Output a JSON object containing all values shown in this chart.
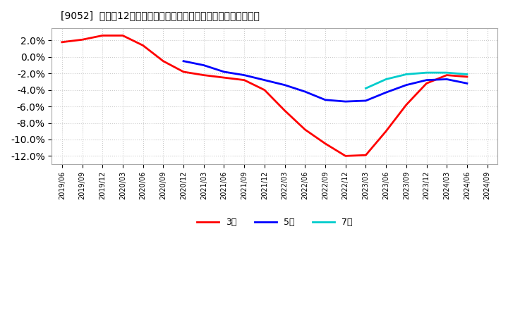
{
  "title": "[9052]  売上高12か月移動合計の対前年同期増減率の平均値の推移",
  "background_color": "#ffffff",
  "plot_bg_color": "#ffffff",
  "grid_color": "#cccccc",
  "ylim": [
    -0.13,
    0.035
  ],
  "yticks": [
    0.02,
    0.0,
    -0.02,
    -0.04,
    -0.06,
    -0.08,
    -0.1,
    -0.12
  ],
  "series": {
    "3year": {
      "color": "#ff0000",
      "label": "3年",
      "points": [
        [
          "2019-06",
          0.018
        ],
        [
          "2019-09",
          0.021
        ],
        [
          "2019-12",
          0.026
        ],
        [
          "2020-03",
          0.026
        ],
        [
          "2020-06",
          0.014
        ],
        [
          "2020-09",
          -0.005
        ],
        [
          "2020-12",
          -0.018
        ],
        [
          "2021-03",
          -0.022
        ],
        [
          "2021-06",
          -0.025
        ],
        [
          "2021-09",
          -0.028
        ],
        [
          "2021-12",
          -0.04
        ],
        [
          "2022-03",
          -0.065
        ],
        [
          "2022-06",
          -0.088
        ],
        [
          "2022-09",
          -0.105
        ],
        [
          "2022-12",
          -0.12
        ],
        [
          "2023-03",
          -0.119
        ],
        [
          "2023-06",
          -0.09
        ],
        [
          "2023-09",
          -0.058
        ],
        [
          "2023-12",
          -0.032
        ],
        [
          "2024-03",
          -0.022
        ],
        [
          "2024-06",
          -0.024
        ],
        [
          "2024-09",
          null
        ]
      ]
    },
    "5year": {
      "color": "#0000ff",
      "label": "5年",
      "points": [
        [
          "2019-06",
          null
        ],
        [
          "2019-09",
          null
        ],
        [
          "2019-12",
          null
        ],
        [
          "2020-03",
          null
        ],
        [
          "2020-06",
          null
        ],
        [
          "2020-09",
          null
        ],
        [
          "2020-12",
          -0.005
        ],
        [
          "2021-03",
          -0.01
        ],
        [
          "2021-06",
          -0.018
        ],
        [
          "2021-09",
          -0.022
        ],
        [
          "2021-12",
          -0.028
        ],
        [
          "2022-03",
          -0.034
        ],
        [
          "2022-06",
          -0.042
        ],
        [
          "2022-09",
          -0.052
        ],
        [
          "2022-12",
          -0.054
        ],
        [
          "2023-03",
          -0.053
        ],
        [
          "2023-06",
          -0.043
        ],
        [
          "2023-09",
          -0.034
        ],
        [
          "2023-12",
          -0.028
        ],
        [
          "2024-03",
          -0.027
        ],
        [
          "2024-06",
          -0.032
        ],
        [
          "2024-09",
          null
        ]
      ]
    },
    "7year": {
      "color": "#00cccc",
      "label": "7年",
      "points": [
        [
          "2019-06",
          null
        ],
        [
          "2019-09",
          null
        ],
        [
          "2019-12",
          null
        ],
        [
          "2020-03",
          null
        ],
        [
          "2020-06",
          null
        ],
        [
          "2020-09",
          null
        ],
        [
          "2020-12",
          null
        ],
        [
          "2021-03",
          null
        ],
        [
          "2021-06",
          null
        ],
        [
          "2021-09",
          null
        ],
        [
          "2021-12",
          null
        ],
        [
          "2022-03",
          null
        ],
        [
          "2022-06",
          null
        ],
        [
          "2022-09",
          null
        ],
        [
          "2022-12",
          null
        ],
        [
          "2023-03",
          -0.038
        ],
        [
          "2023-06",
          -0.027
        ],
        [
          "2023-09",
          -0.021
        ],
        [
          "2023-12",
          -0.019
        ],
        [
          "2024-03",
          -0.019
        ],
        [
          "2024-06",
          -0.021
        ],
        [
          "2024-09",
          null
        ]
      ]
    },
    "10year": {
      "color": "#008000",
      "points": [
        [
          "2019-06",
          null
        ],
        [
          "2019-09",
          null
        ],
        [
          "2019-12",
          null
        ],
        [
          "2020-03",
          null
        ],
        [
          "2020-06",
          null
        ],
        [
          "2020-09",
          null
        ],
        [
          "2020-12",
          null
        ],
        [
          "2021-03",
          null
        ],
        [
          "2021-06",
          null
        ],
        [
          "2021-09",
          null
        ],
        [
          "2021-12",
          null
        ],
        [
          "2022-03",
          null
        ],
        [
          "2022-06",
          null
        ],
        [
          "2022-09",
          null
        ],
        [
          "2022-12",
          null
        ],
        [
          "2023-03",
          null
        ],
        [
          "2023-06",
          null
        ],
        [
          "2023-09",
          null
        ],
        [
          "2023-12",
          null
        ],
        [
          "2024-03",
          null
        ],
        [
          "2024-06",
          null
        ],
        [
          "2024-09",
          null
        ]
      ]
    }
  },
  "xtick_labels": [
    "2019/06",
    "2019/09",
    "2019/12",
    "2020/03",
    "2020/06",
    "2020/09",
    "2020/12",
    "2021/03",
    "2021/06",
    "2021/09",
    "2021/12",
    "2022/03",
    "2022/06",
    "2022/09",
    "2022/12",
    "2023/03",
    "2023/06",
    "2023/09",
    "2023/12",
    "2024/03",
    "2024/06",
    "2024/09"
  ]
}
